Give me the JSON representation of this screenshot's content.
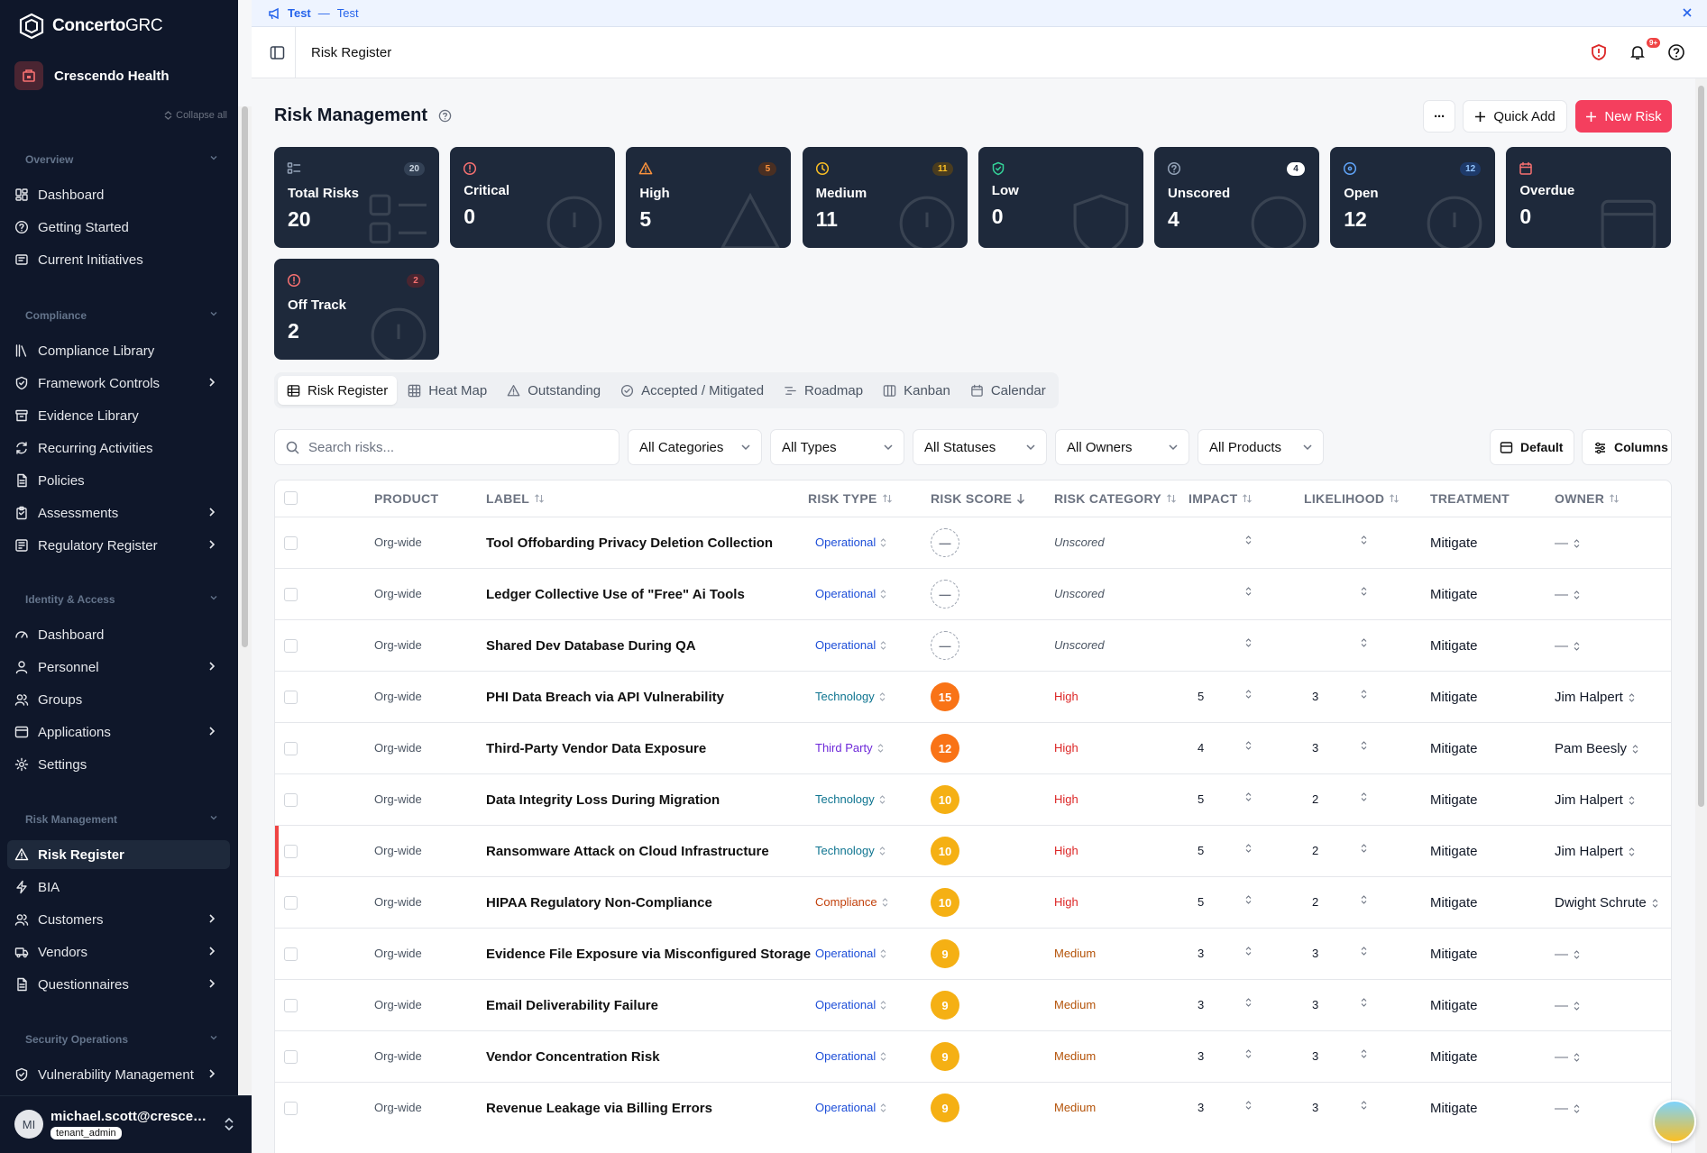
{
  "app": {
    "brand_bold": "Concerto",
    "brand_light": "GRC",
    "org_name": "Crescendo Health",
    "collapse_label": "Collapse all"
  },
  "banner": {
    "label": "Test",
    "sep": "—",
    "text": "Test"
  },
  "topbar": {
    "breadcrumb": "Risk Register",
    "notif_badge": "9+"
  },
  "sidebar": {
    "sections": [
      {
        "label": "Overview",
        "items": [
          {
            "label": "Dashboard",
            "icon": "dashboard-icon"
          },
          {
            "label": "Getting Started",
            "icon": "help-circle-icon"
          },
          {
            "label": "Current Initiatives",
            "icon": "initiatives-icon"
          }
        ]
      },
      {
        "label": "Compliance",
        "items": [
          {
            "label": "Compliance Library",
            "icon": "library-icon"
          },
          {
            "label": "Framework Controls",
            "icon": "shield-icon",
            "arrow": true
          },
          {
            "label": "Evidence Library",
            "icon": "archive-icon"
          },
          {
            "label": "Recurring Activities",
            "icon": "refresh-icon"
          },
          {
            "label": "Policies",
            "icon": "document-icon"
          },
          {
            "label": "Assessments",
            "icon": "clipboard-icon",
            "arrow": true
          },
          {
            "label": "Regulatory Register",
            "icon": "register-icon",
            "arrow": true
          }
        ]
      },
      {
        "label": "Identity & Access",
        "items": [
          {
            "label": "Dashboard",
            "icon": "gauge-icon"
          },
          {
            "label": "Personnel",
            "icon": "user-icon",
            "arrow": true
          },
          {
            "label": "Groups",
            "icon": "users-icon"
          },
          {
            "label": "Applications",
            "icon": "window-icon",
            "arrow": true
          },
          {
            "label": "Settings",
            "icon": "gear-icon"
          }
        ]
      },
      {
        "label": "Risk Management",
        "items": [
          {
            "label": "Risk Register",
            "icon": "warning-icon",
            "active": true
          },
          {
            "label": "BIA",
            "icon": "zap-icon"
          },
          {
            "label": "Customers",
            "icon": "users-icon",
            "arrow": true
          },
          {
            "label": "Vendors",
            "icon": "truck-icon",
            "arrow": true
          },
          {
            "label": "Questionnaires",
            "icon": "document-icon",
            "arrow": true
          }
        ]
      },
      {
        "label": "Security Operations",
        "items": [
          {
            "label": "Vulnerability Management",
            "icon": "shield-icon",
            "arrow": true
          }
        ]
      }
    ]
  },
  "user": {
    "initials": "MI",
    "email": "michael.scott@crescend...",
    "role": "tenant_admin"
  },
  "page": {
    "title": "Risk Management",
    "more_label": "···",
    "quick_add": "Quick Add",
    "new_risk": "New Risk"
  },
  "cards": [
    {
      "label": "Total Risks",
      "value": "20",
      "badge": "20",
      "icon": "list-icon",
      "color": "#94a3b8",
      "badge_bg": "#334155",
      "badge_fg": "#cbd5e1"
    },
    {
      "label": "Critical",
      "value": "0",
      "badge": "",
      "icon": "alert-circle-icon",
      "color": "#f87171"
    },
    {
      "label": "High",
      "value": "5",
      "badge": "5",
      "icon": "warning-icon",
      "color": "#fb923c",
      "badge_bg": "#4a2f22",
      "badge_fg": "#fb923c"
    },
    {
      "label": "Medium",
      "value": "11",
      "badge": "11",
      "icon": "clock-icon",
      "color": "#fbbf24",
      "badge_bg": "#4a3c1f",
      "badge_fg": "#fbbf24"
    },
    {
      "label": "Low",
      "value": "0",
      "badge": "",
      "icon": "shield-icon",
      "color": "#34d399"
    },
    {
      "label": "Unscored",
      "value": "4",
      "badge": "4",
      "icon": "question-icon",
      "color": "#94a3b8",
      "badge_bg": "#ffffff",
      "badge_fg": "#1e293b"
    },
    {
      "label": "Open",
      "value": "12",
      "badge": "12",
      "icon": "target-icon",
      "color": "#60a5fa",
      "badge_bg": "#1e3a6a",
      "badge_fg": "#93c5fd"
    },
    {
      "label": "Overdue",
      "value": "0",
      "badge": "",
      "icon": "calendar-icon",
      "color": "#f87171"
    },
    {
      "label": "Off Track",
      "value": "2",
      "badge": "2",
      "icon": "alert-circle-icon",
      "color": "#f87171",
      "badge_bg": "#4a2530",
      "badge_fg": "#f87171"
    }
  ],
  "tabs": [
    {
      "label": "Risk Register",
      "icon": "table-icon",
      "active": true
    },
    {
      "label": "Heat Map",
      "icon": "grid-icon"
    },
    {
      "label": "Outstanding",
      "icon": "warning-icon"
    },
    {
      "label": "Accepted / Mitigated",
      "icon": "check-circle-icon"
    },
    {
      "label": "Roadmap",
      "icon": "roadmap-icon"
    },
    {
      "label": "Kanban",
      "icon": "kanban-icon"
    },
    {
      "label": "Calendar",
      "icon": "calendar-icon"
    }
  ],
  "filters": {
    "search_placeholder": "Search risks...",
    "categories": "All Categories",
    "types": "All Types",
    "statuses": "All Statuses",
    "owners": "All Owners",
    "products": "All Products",
    "view": "Default",
    "columns": "Columns"
  },
  "table": {
    "headers": {
      "product": "PRODUCT",
      "label": "LABEL",
      "type": "RISK TYPE",
      "score": "RISK SCORE",
      "category": "RISK CATEGORY",
      "impact": "IMPACT",
      "likelihood": "LIKELIHOOD",
      "treatment": "TREATMENT",
      "owner": "OWNER"
    },
    "rows": [
      {
        "product": "Org-wide",
        "label": "Tool Offobarding Privacy Deletion Collection",
        "type": "Operational",
        "score": "—",
        "category": "Unscored",
        "impact": "",
        "likelihood": "",
        "treatment": "Mitigate",
        "owner": "—"
      },
      {
        "product": "Org-wide",
        "label": "Ledger Collective Use of \"Free\" Ai Tools",
        "type": "Operational",
        "score": "—",
        "category": "Unscored",
        "impact": "",
        "likelihood": "",
        "treatment": "Mitigate",
        "owner": "—"
      },
      {
        "product": "Org-wide",
        "label": "Shared Dev Database During QA",
        "type": "Operational",
        "score": "—",
        "category": "Unscored",
        "impact": "",
        "likelihood": "",
        "treatment": "Mitigate",
        "owner": "—"
      },
      {
        "product": "Org-wide",
        "label": "PHI Data Breach via API Vulnerability",
        "type": "Technology",
        "score": "15",
        "category": "High",
        "impact": "5",
        "likelihood": "3",
        "treatment": "Mitigate",
        "owner": "Jim Halpert"
      },
      {
        "product": "Org-wide",
        "label": "Third-Party Vendor Data Exposure",
        "type": "Third Party",
        "score": "12",
        "category": "High",
        "impact": "4",
        "likelihood": "3",
        "treatment": "Mitigate",
        "owner": "Pam Beesly"
      },
      {
        "product": "Org-wide",
        "label": "Data Integrity Loss During Migration",
        "type": "Technology",
        "score": "10",
        "category": "High",
        "impact": "5",
        "likelihood": "2",
        "treatment": "Mitigate",
        "owner": "Jim Halpert"
      },
      {
        "product": "Org-wide",
        "label": "Ransomware Attack on Cloud Infrastructure",
        "type": "Technology",
        "score": "10",
        "category": "High",
        "impact": "5",
        "likelihood": "2",
        "treatment": "Mitigate",
        "owner": "Jim Halpert",
        "flagged": true
      },
      {
        "product": "Org-wide",
        "label": "HIPAA Regulatory Non-Compliance",
        "type": "Compliance",
        "score": "10",
        "category": "High",
        "impact": "5",
        "likelihood": "2",
        "treatment": "Mitigate",
        "owner": "Dwight Schrute"
      },
      {
        "product": "Org-wide",
        "label": "Evidence File Exposure via Misconfigured Storage",
        "type": "Operational",
        "score": "9",
        "category": "Medium",
        "impact": "3",
        "likelihood": "3",
        "treatment": "Mitigate",
        "owner": "—"
      },
      {
        "product": "Org-wide",
        "label": "Email Deliverability Failure",
        "type": "Operational",
        "score": "9",
        "category": "Medium",
        "impact": "3",
        "likelihood": "3",
        "treatment": "Mitigate",
        "owner": "—"
      },
      {
        "product": "Org-wide",
        "label": "Vendor Concentration Risk",
        "type": "Operational",
        "score": "9",
        "category": "Medium",
        "impact": "3",
        "likelihood": "3",
        "treatment": "Mitigate",
        "owner": "—"
      },
      {
        "product": "Org-wide",
        "label": "Revenue Leakage via Billing Errors",
        "type": "Operational",
        "score": "9",
        "category": "Medium",
        "impact": "3",
        "likelihood": "3",
        "treatment": "Mitigate",
        "owner": "—"
      }
    ]
  },
  "colors": {
    "type": {
      "Operational": "#1d4ed8",
      "Technology": "#0e7490",
      "Third Party": "#6d28d9",
      "Compliance": "#c2410c"
    },
    "category": {
      "Unscored": "#4b5563",
      "High": "#dc2626",
      "Medium": "#b45309"
    },
    "score": {
      "15": "#f97316",
      "12": "#f97316",
      "10": "#f5b014",
      "9": "#f5b014"
    }
  }
}
